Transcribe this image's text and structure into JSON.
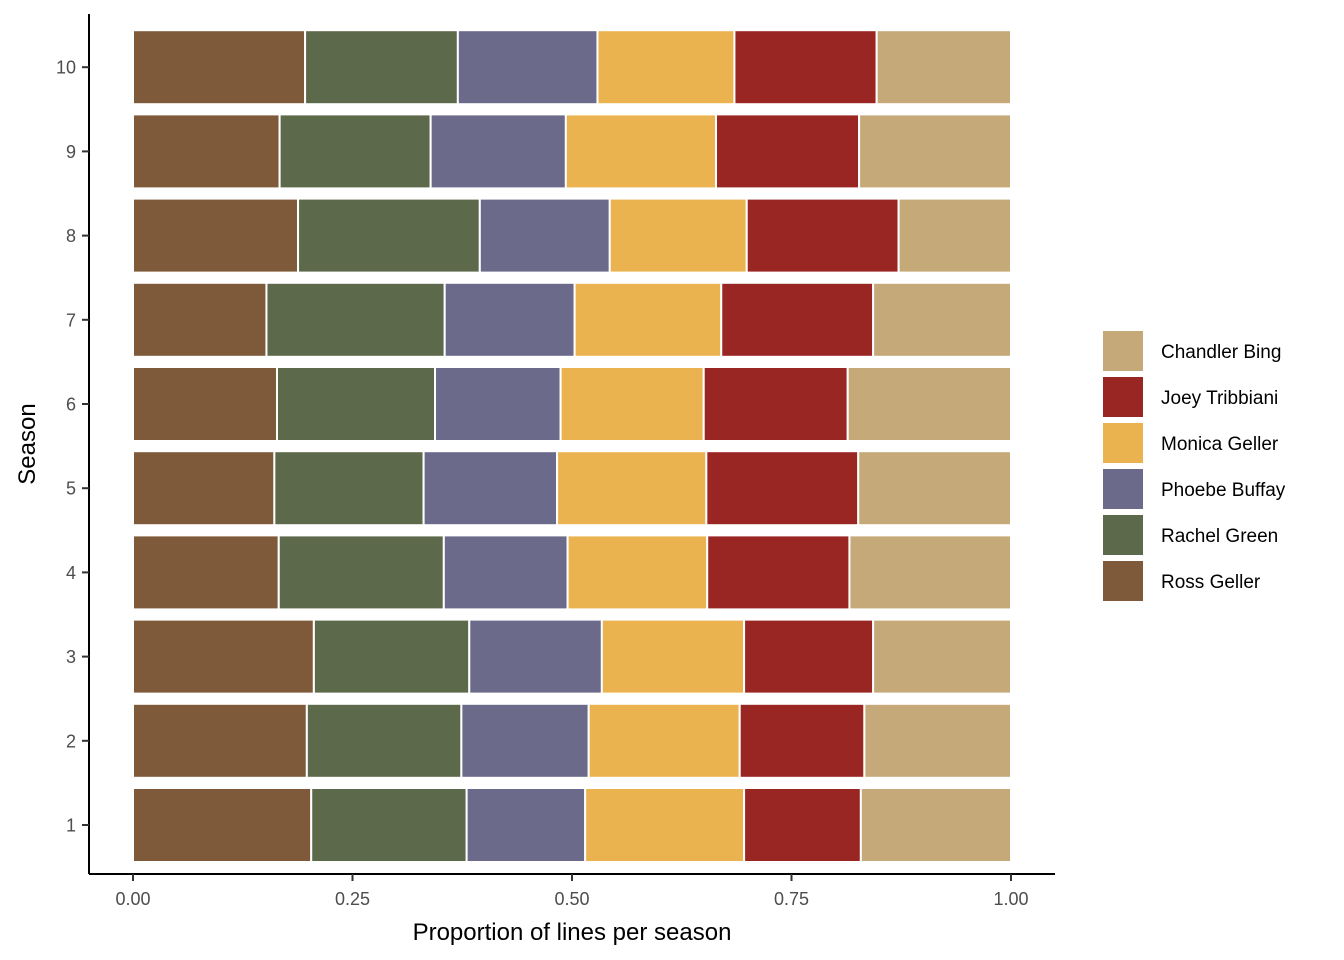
{
  "chart_data": {
    "type": "bar",
    "orientation": "horizontal",
    "stacked": true,
    "categories": [
      "1",
      "2",
      "3",
      "4",
      "5",
      "6",
      "7",
      "8",
      "9",
      "10"
    ],
    "xlabel": "Proportion of lines per season",
    "ylabel": "Season",
    "xlim": [
      0,
      1
    ],
    "x_ticks": [
      "0.00",
      "0.25",
      "0.50",
      "0.75",
      "1.00"
    ],
    "grid": false,
    "legend_position": "right",
    "series": [
      {
        "name": "Ross Geller",
        "color": "#7F5A3A",
        "values": [
          0.203,
          0.198,
          0.206,
          0.166,
          0.161,
          0.164,
          0.152,
          0.188,
          0.167,
          0.196
        ]
      },
      {
        "name": "Rachel Green",
        "color": "#5C694A",
        "values": [
          0.177,
          0.176,
          0.177,
          0.188,
          0.17,
          0.18,
          0.203,
          0.207,
          0.172,
          0.174
        ]
      },
      {
        "name": "Phoebe Buffay",
        "color": "#6C6A8A",
        "values": [
          0.135,
          0.145,
          0.151,
          0.141,
          0.152,
          0.143,
          0.148,
          0.148,
          0.154,
          0.159
        ]
      },
      {
        "name": "Monica Geller",
        "color": "#EBB34F",
        "values": [
          0.181,
          0.172,
          0.162,
          0.159,
          0.17,
          0.163,
          0.167,
          0.156,
          0.171,
          0.156
        ]
      },
      {
        "name": "Joey Tribbiani",
        "color": "#9A2623",
        "values": [
          0.133,
          0.142,
          0.147,
          0.162,
          0.173,
          0.164,
          0.173,
          0.173,
          0.163,
          0.162
        ]
      },
      {
        "name": "Chandler Bing",
        "color": "#C5A978",
        "values": [
          0.171,
          0.167,
          0.157,
          0.184,
          0.174,
          0.186,
          0.157,
          0.128,
          0.173,
          0.153
        ]
      }
    ],
    "legend_order": [
      "Chandler Bing",
      "Joey Tribbiani",
      "Monica Geller",
      "Phoebe Buffay",
      "Rachel Green",
      "Ross Geller"
    ]
  }
}
